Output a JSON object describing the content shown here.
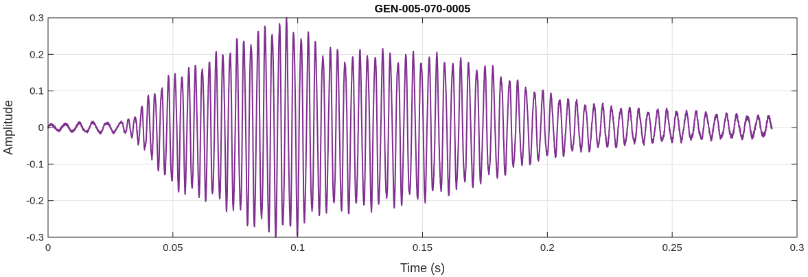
{
  "chart_data": {
    "type": "line",
    "title": "GEN-005-070-0005",
    "xlabel": "Time (s)",
    "ylabel": "Amplitude",
    "xlim": [
      0,
      0.3
    ],
    "ylim": [
      -0.3,
      0.3
    ],
    "xticks": [
      0,
      0.05,
      0.1,
      0.15,
      0.2,
      0.25,
      0.3
    ],
    "xtick_labels": [
      "0",
      "0.05",
      "0.1",
      "0.15",
      "0.2",
      "0.25",
      "0.3"
    ],
    "yticks": [
      -0.3,
      -0.2,
      -0.1,
      0,
      0.1,
      0.2,
      0.3
    ],
    "ytick_labels": [
      "-0.3",
      "-0.2",
      "-0.1",
      "0",
      "0.1",
      "0.2",
      "0.3"
    ],
    "grid": true,
    "line_color": "#7E2F8E",
    "series": [
      {
        "x": [
          0,
          0.005,
          0.01,
          0.015,
          0.02,
          0.025,
          0.03,
          0.035,
          0.04,
          0.05,
          0.06,
          0.07,
          0.08,
          0.09,
          0.093,
          0.1,
          0.11,
          0.12,
          0.13,
          0.14,
          0.15,
          0.16,
          0.17,
          0.18,
          0.19,
          0.2,
          0.21,
          0.22,
          0.23,
          0.24,
          0.25,
          0.26,
          0.27,
          0.28,
          0.29
        ],
        "y": [
          0.008,
          0.009,
          0.011,
          0.013,
          0.015,
          0.013,
          0.015,
          0.03,
          0.08,
          0.14,
          0.16,
          0.2,
          0.24,
          0.27,
          0.28,
          0.26,
          0.21,
          0.19,
          0.2,
          0.19,
          0.19,
          0.18,
          0.17,
          0.15,
          0.11,
          0.09,
          0.07,
          0.06,
          0.05,
          0.045,
          0.045,
          0.04,
          0.035,
          0.03,
          0.028
        ],
        "y_min": [
          -0.006,
          -0.009,
          -0.011,
          -0.013,
          -0.014,
          -0.013,
          -0.012,
          -0.03,
          -0.07,
          -0.16,
          -0.18,
          -0.2,
          -0.25,
          -0.28,
          -0.28,
          -0.27,
          -0.22,
          -0.22,
          -0.21,
          -0.2,
          -0.19,
          -0.17,
          -0.15,
          -0.13,
          -0.1,
          -0.08,
          -0.065,
          -0.055,
          -0.045,
          -0.04,
          -0.035,
          -0.03,
          -0.028,
          -0.025,
          -0.022
        ]
      }
    ]
  }
}
